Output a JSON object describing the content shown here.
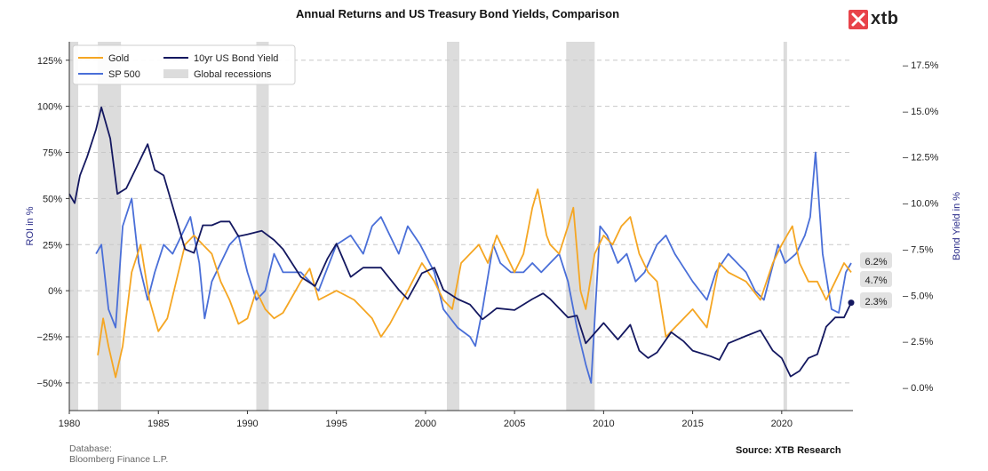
{
  "chart_data": {
    "type": "line",
    "title": "Annual Returns and US Treasury Bond Yields, Comparison",
    "xlabel": "",
    "ylabel": "ROI in %",
    "y2label": "Bond Yield in %",
    "xlim": [
      1980,
      2024
    ],
    "ylim": [
      -65,
      135
    ],
    "y2lim": [
      -1.25,
      18.75
    ],
    "x_ticks": [
      1980,
      1985,
      1990,
      1995,
      2000,
      2005,
      2010,
      2015,
      2020
    ],
    "y_ticks": [
      -50,
      -25,
      0,
      25,
      50,
      75,
      100,
      125
    ],
    "y_tick_labels": [
      "−50%",
      "−25%",
      "0%",
      "25%",
      "50%",
      "75%",
      "100%",
      "125%"
    ],
    "y2_ticks": [
      0,
      2.5,
      5,
      7.5,
      10,
      12.5,
      15,
      17.5
    ],
    "y2_tick_labels": [
      "0.0%",
      "2.5%",
      "5.0%",
      "7.5%",
      "10.0%",
      "12.5%",
      "15.0%",
      "17.5%"
    ],
    "legend": {
      "position": "top-left",
      "entries": [
        {
          "label": "Gold",
          "color": "#f5a623",
          "kind": "line"
        },
        {
          "label": "10yr US Bond Yield",
          "color": "#141860",
          "kind": "line"
        },
        {
          "label": "SP 500",
          "color": "#4a6fd8",
          "kind": "line"
        },
        {
          "label": "Global recessions",
          "color": "#dcdcdc",
          "kind": "patch"
        }
      ]
    },
    "recessions": [
      [
        1980.0,
        1980.5
      ],
      [
        1981.6,
        1982.9
      ],
      [
        1990.5,
        1991.2
      ],
      [
        2001.2,
        2001.9
      ],
      [
        2007.9,
        2009.5
      ],
      [
        2020.1,
        2020.3
      ]
    ],
    "series": [
      {
        "name": "Gold",
        "axis": "left",
        "color": "#f5a623",
        "x": [
          1981.6,
          1981.9,
          1982.2,
          1982.6,
          1983.0,
          1983.5,
          1984.0,
          1984.5,
          1985.0,
          1985.5,
          1986.0,
          1986.5,
          1987.0,
          1987.5,
          1988.0,
          1988.5,
          1989.0,
          1989.5,
          1990.0,
          1990.5,
          1991.0,
          1991.5,
          1992.0,
          1993.0,
          1993.5,
          1994.0,
          1995.0,
          1996.0,
          1997.0,
          1997.5,
          1998.0,
          1999.0,
          1999.8,
          2000.5,
          2001.0,
          2001.5,
          2002.0,
          2002.5,
          2003.0,
          2003.5,
          2004.0,
          2004.5,
          2005.0,
          2005.5,
          2006.0,
          2006.3,
          2006.8,
          2007.0,
          2007.5,
          2008.0,
          2008.3,
          2008.7,
          2009.0,
          2009.5,
          2010.0,
          2010.5,
          2011.0,
          2011.5,
          2012.0,
          2012.5,
          2013.0,
          2013.5,
          2014.0,
          2015.0,
          2015.8,
          2016.5,
          2017.0,
          2018.0,
          2018.8,
          2019.5,
          2020.0,
          2020.6,
          2021.0,
          2021.5,
          2022.0,
          2022.5,
          2023.0,
          2023.5,
          2023.9
        ],
        "y": [
          -35,
          -15,
          -30,
          -47,
          -30,
          10,
          25,
          -5,
          -22,
          -15,
          5,
          25,
          30,
          25,
          20,
          5,
          -5,
          -18,
          -15,
          0,
          -10,
          -15,
          -12,
          5,
          12,
          -5,
          0,
          -5,
          -15,
          -25,
          -18,
          0,
          15,
          5,
          -5,
          -10,
          15,
          20,
          25,
          15,
          30,
          20,
          10,
          20,
          45,
          55,
          30,
          25,
          20,
          35,
          45,
          0,
          -10,
          20,
          30,
          25,
          35,
          40,
          20,
          10,
          5,
          -25,
          -20,
          -10,
          -20,
          15,
          10,
          5,
          -5,
          15,
          25,
          35,
          15,
          5,
          5,
          -5,
          5,
          15,
          10
        ]
      },
      {
        "name": "SP 500",
        "axis": "left",
        "color": "#4a6fd8",
        "x": [
          1981.5,
          1981.8,
          1982.2,
          1982.6,
          1983.0,
          1983.5,
          1983.9,
          1984.4,
          1984.8,
          1985.3,
          1985.8,
          1986.3,
          1986.8,
          1987.3,
          1987.6,
          1988.0,
          1988.5,
          1989.0,
          1989.5,
          1990.0,
          1990.5,
          1991.0,
          1991.5,
          1992.0,
          1993.0,
          1994.0,
          1995.0,
          1995.8,
          1996.5,
          1997.0,
          1997.5,
          1998.0,
          1998.5,
          1999.0,
          1999.7,
          2000.5,
          2001.0,
          2001.8,
          2002.5,
          2002.8,
          2003.2,
          2003.8,
          2004.2,
          2004.8,
          2005.5,
          2006.0,
          2006.5,
          2007.0,
          2007.5,
          2008.0,
          2008.5,
          2009.0,
          2009.3,
          2009.8,
          2010.2,
          2010.8,
          2011.3,
          2011.8,
          2012.3,
          2013.0,
          2013.5,
          2014.0,
          2015.0,
          2015.8,
          2016.3,
          2017.0,
          2018.0,
          2018.5,
          2019.0,
          2019.8,
          2020.2,
          2020.8,
          2021.3,
          2021.6,
          2021.9,
          2022.3,
          2022.8,
          2023.2,
          2023.6,
          2023.9
        ],
        "y": [
          20,
          25,
          -10,
          -20,
          35,
          50,
          15,
          -5,
          10,
          25,
          20,
          30,
          40,
          15,
          -15,
          5,
          15,
          25,
          30,
          10,
          -5,
          0,
          20,
          10,
          10,
          0,
          25,
          30,
          20,
          35,
          40,
          30,
          20,
          35,
          25,
          10,
          -10,
          -20,
          -25,
          -30,
          -10,
          25,
          15,
          10,
          10,
          15,
          10,
          15,
          20,
          5,
          -20,
          -40,
          -50,
          35,
          30,
          15,
          20,
          5,
          10,
          25,
          30,
          20,
          5,
          -5,
          10,
          20,
          10,
          0,
          -5,
          25,
          15,
          20,
          30,
          40,
          75,
          20,
          -10,
          -12,
          10,
          15
        ]
      },
      {
        "name": "10yr US Bond Yield",
        "axis": "right",
        "color": "#141860",
        "x": [
          1980.0,
          1980.3,
          1980.6,
          1981.0,
          1981.5,
          1981.8,
          1982.3,
          1982.7,
          1983.2,
          1983.8,
          1984.4,
          1984.8,
          1985.3,
          1985.9,
          1986.5,
          1987.0,
          1987.5,
          1988.0,
          1988.5,
          1989.0,
          1989.5,
          1990.0,
          1990.8,
          1991.5,
          1992.0,
          1993.0,
          1993.8,
          1994.5,
          1995.0,
          1995.8,
          1996.5,
          1997.5,
          1998.5,
          1999.0,
          1999.8,
          2000.5,
          2001.0,
          2001.8,
          2002.5,
          2003.2,
          2004.0,
          2005.0,
          2006.0,
          2006.6,
          2007.0,
          2008.0,
          2008.5,
          2009.0,
          2010.0,
          2010.8,
          2011.5,
          2012.0,
          2012.5,
          2013.0,
          2013.8,
          2014.5,
          2015.0,
          2016.0,
          2016.5,
          2017.0,
          2018.0,
          2018.8,
          2019.5,
          2020.0,
          2020.5,
          2021.0,
          2021.5,
          2022.0,
          2022.5,
          2023.0,
          2023.5,
          2023.9
        ],
        "y": [
          10.5,
          10.0,
          11.5,
          12.5,
          14.0,
          15.2,
          13.5,
          10.5,
          10.8,
          12.0,
          13.2,
          11.8,
          11.5,
          9.5,
          7.5,
          7.3,
          8.8,
          8.8,
          9.0,
          9.0,
          8.2,
          8.3,
          8.5,
          8.0,
          7.5,
          6.0,
          5.5,
          7.0,
          7.8,
          6.0,
          6.5,
          6.5,
          5.3,
          4.8,
          6.2,
          6.5,
          5.3,
          4.8,
          4.5,
          3.7,
          4.3,
          4.2,
          4.8,
          5.1,
          4.8,
          3.8,
          3.9,
          2.4,
          3.5,
          2.6,
          3.4,
          2.0,
          1.6,
          1.9,
          3.0,
          2.5,
          2.0,
          1.7,
          1.5,
          2.4,
          2.8,
          3.1,
          2.0,
          1.6,
          0.6,
          0.9,
          1.6,
          1.8,
          3.3,
          3.8,
          3.8,
          4.6
        ]
      }
    ],
    "end_labels": [
      "6.2%",
      "4.7%",
      "2.3%"
    ]
  },
  "header": {
    "title": "Annual Returns and US Treasury Bond Yields, Comparison",
    "logo_text": "xtb"
  },
  "footer": {
    "database_label": "Database:",
    "database_value": "Bloomberg Finance L.P.",
    "source": "Source: XTB Research"
  },
  "colors": {
    "gold": "#f5a623",
    "sp500": "#4a6fd8",
    "bond": "#141860",
    "recession": "#dcdcdc",
    "brand": "#e8434a"
  }
}
